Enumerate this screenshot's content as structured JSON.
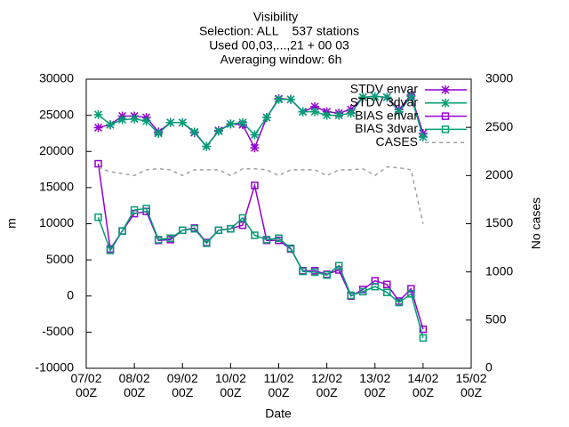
{
  "chart_data": {
    "type": "line",
    "title": [
      "Visibility",
      "Selection: ALL    537 stations",
      "Used 00,03,...,21 + 00 03",
      "Averaging window:  6h"
    ],
    "x_label": "Date",
    "y_label": "m",
    "y2_label": "No cases",
    "x": [
      "07/02 06Z",
      "07/02 12Z",
      "07/02 18Z",
      "08/02 00Z",
      "08/02 06Z",
      "08/02 12Z",
      "08/02 18Z",
      "09/02 00Z",
      "09/02 06Z",
      "09/02 12Z",
      "09/02 18Z",
      "10/02 00Z",
      "10/02 06Z",
      "10/02 12Z",
      "10/02 18Z",
      "11/02 00Z",
      "11/02 06Z",
      "11/02 12Z",
      "11/02 18Z",
      "12/02 00Z",
      "12/02 06Z",
      "12/02 12Z",
      "12/02 18Z",
      "13/02 00Z",
      "13/02 06Z",
      "13/02 12Z",
      "13/02 18Z",
      "14/02 00Z"
    ],
    "xlim": [
      "07/02 00Z",
      "15/02 00Z"
    ],
    "xticks": [
      "07/02 00Z",
      "08/02 00Z",
      "09/02 00Z",
      "10/02 00Z",
      "11/02 00Z",
      "12/02 00Z",
      "13/02 00Z",
      "14/02 00Z",
      "15/02 00Z"
    ],
    "ylim": [
      -10000,
      30000
    ],
    "yticks": [
      -10000,
      -5000,
      0,
      5000,
      10000,
      15000,
      20000,
      25000,
      30000
    ],
    "y2lim": [
      0,
      3000
    ],
    "y2ticks": [
      0,
      500,
      1000,
      1500,
      2000,
      2500,
      3000
    ],
    "legend": "top-right",
    "series": [
      {
        "name": "STDV envar",
        "color": "#9400d3",
        "marker": "star",
        "values": [
          23300,
          23700,
          24900,
          24900,
          24700,
          22700,
          24000,
          24000,
          22600,
          20700,
          22900,
          23800,
          23700,
          20500,
          24700,
          27300,
          27200,
          25500,
          26200,
          25500,
          25300,
          25800,
          27500,
          27600,
          27500,
          25800,
          27800,
          22500
        ]
      },
      {
        "name": "STDV 3dvar",
        "color": "#009e73",
        "marker": "star",
        "values": [
          25100,
          23700,
          24400,
          24500,
          24200,
          22500,
          24000,
          24000,
          22700,
          20700,
          22800,
          23800,
          24000,
          22300,
          24700,
          27200,
          27200,
          25500,
          25500,
          25000,
          25000,
          25300,
          27500,
          27600,
          27500,
          25500,
          27600,
          22000
        ]
      },
      {
        "name": "BIAS envar",
        "color": "#9400d3",
        "marker": "square",
        "values": [
          18300,
          6500,
          9000,
          11400,
          11700,
          7700,
          7800,
          9100,
          9400,
          7400,
          9100,
          9300,
          9800,
          15300,
          7700,
          7700,
          6500,
          3500,
          3500,
          3000,
          3600,
          0,
          900,
          2100,
          1600,
          -700,
          1000,
          -4600
        ]
      },
      {
        "name": "BIAS 3dvar",
        "color": "#009e73",
        "marker": "square",
        "values": [
          10900,
          6300,
          9000,
          11900,
          12100,
          7800,
          8000,
          9100,
          9300,
          7300,
          9100,
          9300,
          10800,
          8400,
          7800,
          8000,
          6600,
          3400,
          3300,
          2900,
          4200,
          100,
          600,
          1300,
          500,
          -900,
          300,
          -5800
        ]
      },
      {
        "name": "CASES",
        "color": "#a0a0a0",
        "dash": true,
        "axis": "y2",
        "values": [
          2080,
          2040,
          2020,
          2000,
          2060,
          2070,
          2060,
          2000,
          2060,
          2060,
          2060,
          2000,
          2070,
          2070,
          2060,
          2000,
          2060,
          2060,
          2060,
          2000,
          2060,
          2060,
          2070,
          2000,
          2090,
          2080,
          2060,
          1500
        ]
      }
    ]
  }
}
